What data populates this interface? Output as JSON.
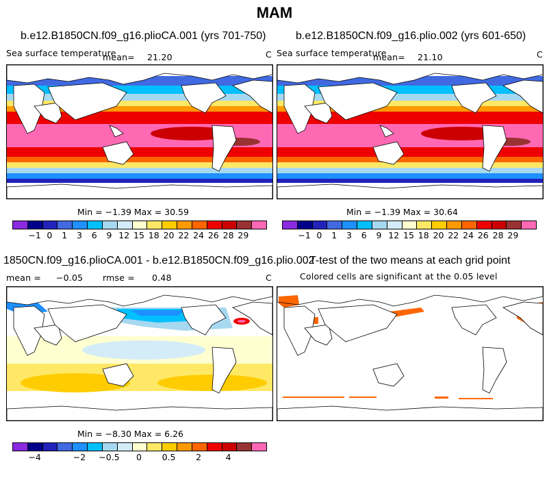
{
  "season": "MAM",
  "panels": {
    "p1": {
      "title": "b.e12.B1850CN.f09_g16.plioCA.001 (yrs 701-750)",
      "field": "Sea surface temperature",
      "mean_label": "mean=",
      "mean": "21.20",
      "unit": "C",
      "minmax": "Min =  −1.39 Max =  30.59"
    },
    "p2": {
      "title": "b.e12.B1850CN.f09_g16.plio.002 (yrs 601-650)",
      "field": "Sea surface temperature",
      "mean_label": "mean=",
      "mean": "21.10",
      "unit": "C",
      "minmax": "Min =  −1.39 Max =  30.64"
    },
    "p3": {
      "title": "1850CN.f09_g16.plioCA.001 - b.e12.B1850CN.f09_g16.plio.002",
      "mean_label": "mean =",
      "mean": "−0.05",
      "rmse_label": "rmse =",
      "rmse": "0.48",
      "unit": "C",
      "minmax": "Min =  −8.30 Max =   6.26"
    },
    "p4": {
      "title": "T-test of the two means at each grid point",
      "subtitle": "Colored cells are significant at the 0.05 level"
    }
  },
  "colorbar_sst": {
    "colors": [
      "#8a2be2",
      "#00008b",
      "#2222bb",
      "#4169e1",
      "#1e90ff",
      "#00bfff",
      "#a6d8f0",
      "#d4ecf8",
      "#ffffd0",
      "#ffe866",
      "#ffcc00",
      "#ff9900",
      "#ff6600",
      "#ee0000",
      "#cc0000",
      "#993333",
      "#ff69b4"
    ],
    "labels": [
      "−1",
      "0",
      "1",
      "3",
      "6",
      "9",
      "12",
      "15",
      "18",
      "20",
      "22",
      "24",
      "26",
      "28",
      "29"
    ]
  },
  "colorbar_diff": {
    "colors": [
      "#8a2be2",
      "#00008b",
      "#2222bb",
      "#4169e1",
      "#1e90ff",
      "#00bfff",
      "#a6d8f0",
      "#d4ecf8",
      "#ffffd0",
      "#ffe866",
      "#ffcc00",
      "#ff9900",
      "#ff6600",
      "#ee0000",
      "#cc0000",
      "#993333",
      "#ff69b4"
    ],
    "labels": [
      "−4",
      "−2",
      "−0.5",
      "0",
      "0.5",
      "2",
      "4"
    ]
  }
}
